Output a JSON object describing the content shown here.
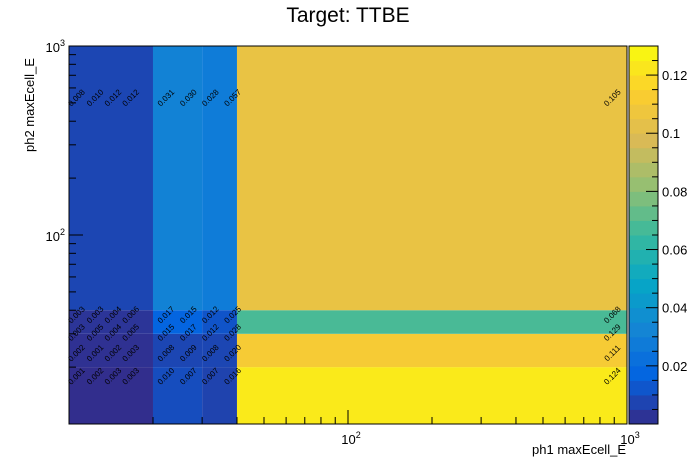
{
  "chart_data": {
    "type": "heatmap",
    "title": "Target: TTBE",
    "xlabel": "ph1 maxEcell_E",
    "ylabel": "ph2 maxEcell_E",
    "x_scale": "log",
    "y_scale": "log",
    "xlim": [
      10,
      1000
    ],
    "ylim": [
      10,
      1000
    ],
    "x_edges": [
      10,
      20,
      30,
      40,
      1000
    ],
    "y_edges": [
      10,
      20,
      30,
      40,
      1000
    ],
    "x_ticks": [
      {
        "value": 100,
        "label": "10²"
      },
      {
        "value": 1000,
        "label": "10³"
      }
    ],
    "y_ticks": [
      {
        "value": 100,
        "label": "10²"
      },
      {
        "value": 1000,
        "label": "10³"
      }
    ],
    "colorbar": {
      "min": 0,
      "max": 0.13,
      "ticks": [
        "0.02",
        "0.04",
        "0.06",
        "0.08",
        "0.1",
        "0.12"
      ]
    },
    "colors": {
      "low": "#352a87",
      "high": "#f9fb0e"
    },
    "cell_labels": [
      {
        "x": 10.8,
        "y": 17.5,
        "text": "0.001"
      },
      {
        "x": 12.6,
        "y": 17.5,
        "text": "0.002"
      },
      {
        "x": 14.6,
        "y": 17.5,
        "text": "0.003"
      },
      {
        "x": 16.9,
        "y": 17.5,
        "text": "0.003"
      },
      {
        "x": 22.6,
        "y": 17.5,
        "text": "0.010"
      },
      {
        "x": 27.2,
        "y": 17.5,
        "text": "0.007"
      },
      {
        "x": 32.6,
        "y": 17.5,
        "text": "0.007"
      },
      {
        "x": 39.2,
        "y": 17.5,
        "text": "0.016"
      },
      {
        "x": 900,
        "y": 17.5,
        "text": "0.124"
      },
      {
        "x": 10.8,
        "y": 23.2,
        "text": "0.002"
      },
      {
        "x": 12.6,
        "y": 23.2,
        "text": "0.001"
      },
      {
        "x": 14.6,
        "y": 23.2,
        "text": "0.002"
      },
      {
        "x": 16.9,
        "y": 23.2,
        "text": "0.003"
      },
      {
        "x": 22.6,
        "y": 23.2,
        "text": "0.008"
      },
      {
        "x": 27.2,
        "y": 23.2,
        "text": "0.009"
      },
      {
        "x": 32.6,
        "y": 23.2,
        "text": "0.008"
      },
      {
        "x": 39.2,
        "y": 23.2,
        "text": "0.020"
      },
      {
        "x": 900,
        "y": 23.2,
        "text": "0.111"
      },
      {
        "x": 10.8,
        "y": 29.8,
        "text": "0.003"
      },
      {
        "x": 12.6,
        "y": 29.8,
        "text": "0.005"
      },
      {
        "x": 14.6,
        "y": 29.8,
        "text": "0.004"
      },
      {
        "x": 16.9,
        "y": 29.8,
        "text": "0.005"
      },
      {
        "x": 22.6,
        "y": 29.8,
        "text": "0.015"
      },
      {
        "x": 27.2,
        "y": 29.8,
        "text": "0.017"
      },
      {
        "x": 32.6,
        "y": 29.8,
        "text": "0.012"
      },
      {
        "x": 39.2,
        "y": 29.8,
        "text": "0.028"
      },
      {
        "x": 900,
        "y": 29.8,
        "text": "0.129"
      },
      {
        "x": 10.8,
        "y": 37.0,
        "text": "0.003"
      },
      {
        "x": 12.6,
        "y": 37.0,
        "text": "0.003"
      },
      {
        "x": 14.6,
        "y": 37.0,
        "text": "0.004"
      },
      {
        "x": 16.9,
        "y": 37.0,
        "text": "0.006"
      },
      {
        "x": 22.6,
        "y": 37.0,
        "text": "0.017"
      },
      {
        "x": 27.2,
        "y": 37.0,
        "text": "0.015"
      },
      {
        "x": 32.6,
        "y": 37.0,
        "text": "0.012"
      },
      {
        "x": 39.2,
        "y": 37.0,
        "text": "0.025"
      },
      {
        "x": 900,
        "y": 37.0,
        "text": "0.068"
      },
      {
        "x": 10.8,
        "y": 520,
        "text": "0.008"
      },
      {
        "x": 12.6,
        "y": 520,
        "text": "0.010"
      },
      {
        "x": 14.6,
        "y": 520,
        "text": "0.012"
      },
      {
        "x": 16.9,
        "y": 520,
        "text": "0.012"
      },
      {
        "x": 22.6,
        "y": 520,
        "text": "0.031"
      },
      {
        "x": 27.2,
        "y": 520,
        "text": "0.030"
      },
      {
        "x": 32.6,
        "y": 520,
        "text": "0.028"
      },
      {
        "x": 39.2,
        "y": 520,
        "text": "0.057"
      },
      {
        "x": 900,
        "y": 520,
        "text": "0.105"
      }
    ],
    "legend": "colorbar-right",
    "grid": false
  }
}
